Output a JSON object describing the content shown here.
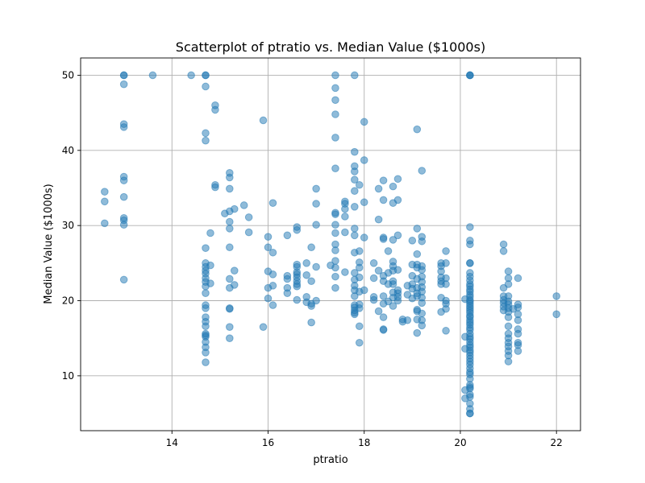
{
  "chart_data": {
    "type": "scatter",
    "title": "Scatterplot of ptratio vs. Median Value ($1000s)",
    "xlabel": "ptratio",
    "ylabel": "Median Value ($1000s)",
    "xlim": [
      12.1,
      22.5
    ],
    "ylim": [
      2.7,
      52.3
    ],
    "xticks": [
      14,
      16,
      18,
      20,
      22
    ],
    "yticks": [
      10,
      20,
      30,
      40,
      50
    ],
    "grid": true,
    "marker_color": "#1f77b4",
    "marker_alpha": 0.5,
    "points": [
      [
        12.6,
        34.5
      ],
      [
        12.6,
        33.2
      ],
      [
        12.6,
        30.3
      ],
      [
        13.0,
        50.0
      ],
      [
        13.0,
        50.0
      ],
      [
        13.0,
        48.8
      ],
      [
        13.0,
        43.5
      ],
      [
        13.0,
        43.1
      ],
      [
        13.0,
        36.5
      ],
      [
        13.0,
        36.0
      ],
      [
        13.0,
        33.8
      ],
      [
        13.0,
        31.0
      ],
      [
        13.0,
        30.7
      ],
      [
        13.0,
        30.1
      ],
      [
        13.0,
        22.8
      ],
      [
        13.6,
        50.0
      ],
      [
        14.4,
        50.0
      ],
      [
        14.7,
        50.0
      ],
      [
        14.7,
        50.0
      ],
      [
        14.7,
        48.5
      ],
      [
        14.7,
        42.3
      ],
      [
        14.7,
        41.3
      ],
      [
        14.7,
        27.0
      ],
      [
        14.7,
        25.0
      ],
      [
        14.7,
        24.5
      ],
      [
        14.7,
        24.0
      ],
      [
        14.7,
        23.6
      ],
      [
        14.7,
        23.0
      ],
      [
        14.7,
        22.5
      ],
      [
        14.7,
        21.9
      ],
      [
        14.7,
        21.0
      ],
      [
        14.7,
        19.4
      ],
      [
        14.7,
        19.0
      ],
      [
        14.7,
        17.8
      ],
      [
        14.7,
        17.2
      ],
      [
        14.7,
        16.6
      ],
      [
        14.7,
        15.6
      ],
      [
        14.7,
        15.4
      ],
      [
        14.7,
        15.2
      ],
      [
        14.7,
        14.5
      ],
      [
        14.7,
        13.8
      ],
      [
        14.7,
        13.1
      ],
      [
        14.7,
        11.8
      ],
      [
        14.8,
        29.0
      ],
      [
        14.8,
        24.7
      ],
      [
        14.8,
        22.3
      ],
      [
        14.9,
        46.0
      ],
      [
        14.9,
        45.4
      ],
      [
        14.9,
        35.4
      ],
      [
        14.9,
        35.1
      ],
      [
        15.1,
        31.6
      ],
      [
        15.2,
        37.0
      ],
      [
        15.2,
        36.4
      ],
      [
        15.2,
        34.9
      ],
      [
        15.2,
        31.9
      ],
      [
        15.2,
        30.5
      ],
      [
        15.2,
        29.6
      ],
      [
        15.2,
        27.1
      ],
      [
        15.2,
        22.9
      ],
      [
        15.2,
        21.7
      ],
      [
        15.2,
        19.0
      ],
      [
        15.2,
        18.9
      ],
      [
        15.2,
        16.5
      ],
      [
        15.2,
        15.0
      ],
      [
        15.3,
        32.2
      ],
      [
        15.3,
        24.0
      ],
      [
        15.3,
        22.1
      ],
      [
        15.5,
        32.7
      ],
      [
        15.6,
        31.1
      ],
      [
        15.6,
        29.1
      ],
      [
        15.9,
        44.0
      ],
      [
        15.9,
        16.5
      ],
      [
        16.0,
        28.5
      ],
      [
        16.0,
        27.1
      ],
      [
        16.0,
        23.9
      ],
      [
        16.0,
        21.7
      ],
      [
        16.0,
        20.3
      ],
      [
        16.1,
        33.0
      ],
      [
        16.1,
        26.4
      ],
      [
        16.1,
        23.5
      ],
      [
        16.1,
        22.0
      ],
      [
        16.1,
        19.4
      ],
      [
        16.4,
        28.7
      ],
      [
        16.4,
        23.3
      ],
      [
        16.4,
        22.9
      ],
      [
        16.4,
        21.7
      ],
      [
        16.4,
        21.0
      ],
      [
        16.6,
        29.8
      ],
      [
        16.6,
        29.4
      ],
      [
        16.6,
        24.8
      ],
      [
        16.6,
        24.5
      ],
      [
        16.6,
        23.8
      ],
      [
        16.6,
        23.5
      ],
      [
        16.6,
        23.1
      ],
      [
        16.6,
        22.6
      ],
      [
        16.6,
        22.2
      ],
      [
        16.6,
        21.9
      ],
      [
        16.6,
        20.1
      ],
      [
        16.8,
        25.0
      ],
      [
        16.8,
        23.4
      ],
      [
        16.8,
        20.5
      ],
      [
        16.8,
        19.8
      ],
      [
        16.9,
        27.1
      ],
      [
        16.9,
        22.6
      ],
      [
        16.9,
        19.6
      ],
      [
        16.9,
        19.3
      ],
      [
        16.9,
        17.1
      ],
      [
        17.0,
        34.9
      ],
      [
        17.0,
        32.9
      ],
      [
        17.0,
        30.1
      ],
      [
        17.0,
        24.5
      ],
      [
        17.0,
        20.0
      ],
      [
        17.3,
        24.7
      ],
      [
        17.4,
        50.0
      ],
      [
        17.4,
        48.3
      ],
      [
        17.4,
        46.7
      ],
      [
        17.4,
        44.8
      ],
      [
        17.4,
        41.7
      ],
      [
        17.4,
        37.6
      ],
      [
        17.4,
        31.7
      ],
      [
        17.4,
        31.5
      ],
      [
        17.4,
        30.1
      ],
      [
        17.4,
        29.0
      ],
      [
        17.4,
        27.5
      ],
      [
        17.4,
        26.7
      ],
      [
        17.4,
        25.3
      ],
      [
        17.4,
        24.4
      ],
      [
        17.4,
        23.2
      ],
      [
        17.4,
        21.7
      ],
      [
        17.6,
        33.2
      ],
      [
        17.6,
        32.9
      ],
      [
        17.6,
        32.2
      ],
      [
        17.6,
        31.2
      ],
      [
        17.6,
        29.1
      ],
      [
        17.6,
        23.8
      ],
      [
        17.8,
        50.0
      ],
      [
        17.8,
        39.8
      ],
      [
        17.8,
        37.9
      ],
      [
        17.8,
        37.2
      ],
      [
        17.8,
        36.1
      ],
      [
        17.8,
        34.6
      ],
      [
        17.8,
        32.5
      ],
      [
        17.8,
        29.6
      ],
      [
        17.8,
        28.7
      ],
      [
        17.8,
        26.4
      ],
      [
        17.8,
        23.7
      ],
      [
        17.8,
        22.8
      ],
      [
        17.8,
        22.0
      ],
      [
        17.8,
        21.4
      ],
      [
        17.8,
        20.6
      ],
      [
        17.8,
        19.4
      ],
      [
        17.8,
        19.1
      ],
      [
        17.8,
        18.7
      ],
      [
        17.8,
        18.4
      ],
      [
        17.8,
        18.2
      ],
      [
        17.9,
        35.4
      ],
      [
        17.9,
        26.6
      ],
      [
        17.9,
        25.1
      ],
      [
        17.9,
        24.4
      ],
      [
        17.9,
        23.1
      ],
      [
        17.9,
        21.2
      ],
      [
        17.9,
        19.5
      ],
      [
        17.9,
        19.0
      ],
      [
        17.9,
        16.6
      ],
      [
        17.9,
        14.4
      ],
      [
        18.0,
        43.8
      ],
      [
        18.0,
        38.7
      ],
      [
        18.0,
        33.1
      ],
      [
        18.0,
        28.4
      ],
      [
        18.0,
        21.4
      ],
      [
        18.2,
        25.0
      ],
      [
        18.2,
        23.0
      ],
      [
        18.2,
        20.5
      ],
      [
        18.2,
        20.1
      ],
      [
        18.3,
        34.9
      ],
      [
        18.3,
        30.8
      ],
      [
        18.3,
        24.0
      ],
      [
        18.3,
        18.6
      ],
      [
        18.4,
        36.0
      ],
      [
        18.4,
        33.4
      ],
      [
        18.4,
        28.4
      ],
      [
        18.4,
        28.2
      ],
      [
        18.4,
        23.3
      ],
      [
        18.4,
        22.6
      ],
      [
        18.4,
        20.6
      ],
      [
        18.4,
        19.6
      ],
      [
        18.4,
        17.8
      ],
      [
        18.4,
        16.2
      ],
      [
        18.4,
        16.1
      ],
      [
        18.5,
        26.6
      ],
      [
        18.5,
        23.7
      ],
      [
        18.5,
        22.2
      ],
      [
        18.5,
        19.9
      ],
      [
        18.6,
        35.2
      ],
      [
        18.6,
        33.0
      ],
      [
        18.6,
        28.1
      ],
      [
        18.6,
        25.2
      ],
      [
        18.6,
        24.6
      ],
      [
        18.6,
        24.0
      ],
      [
        18.6,
        22.6
      ],
      [
        18.6,
        22.2
      ],
      [
        18.6,
        21.1
      ],
      [
        18.6,
        20.4
      ],
      [
        18.6,
        19.3
      ],
      [
        18.7,
        36.2
      ],
      [
        18.7,
        33.4
      ],
      [
        18.7,
        28.7
      ],
      [
        18.7,
        24.1
      ],
      [
        18.7,
        21.4
      ],
      [
        18.7,
        21.0
      ],
      [
        18.7,
        20.5
      ],
      [
        18.7,
        20.0
      ],
      [
        18.8,
        17.5
      ],
      [
        18.8,
        17.2
      ],
      [
        18.9,
        22.0
      ],
      [
        18.9,
        20.8
      ],
      [
        18.9,
        17.4
      ],
      [
        19.0,
        28.0
      ],
      [
        19.0,
        24.8
      ],
      [
        19.0,
        23.3
      ],
      [
        19.0,
        22.2
      ],
      [
        19.0,
        21.6
      ],
      [
        19.0,
        20.3
      ],
      [
        19.1,
        42.8
      ],
      [
        19.1,
        29.6
      ],
      [
        19.1,
        26.2
      ],
      [
        19.1,
        24.8
      ],
      [
        19.1,
        24.4
      ],
      [
        19.1,
        22.9
      ],
      [
        19.1,
        21.7
      ],
      [
        19.1,
        21.0
      ],
      [
        19.1,
        20.6
      ],
      [
        19.1,
        18.8
      ],
      [
        19.1,
        18.6
      ],
      [
        19.1,
        17.5
      ],
      [
        19.1,
        15.7
      ],
      [
        19.2,
        37.3
      ],
      [
        19.2,
        28.5
      ],
      [
        19.2,
        27.9
      ],
      [
        19.2,
        24.6
      ],
      [
        19.2,
        24.1
      ],
      [
        19.2,
        23.2
      ],
      [
        19.2,
        22.5
      ],
      [
        19.2,
        21.8
      ],
      [
        19.2,
        21.2
      ],
      [
        19.2,
        20.4
      ],
      [
        19.2,
        19.7
      ],
      [
        19.2,
        18.3
      ],
      [
        19.2,
        17.4
      ],
      [
        19.2,
        16.7
      ],
      [
        19.6,
        25.0
      ],
      [
        19.6,
        24.6
      ],
      [
        19.6,
        23.9
      ],
      [
        19.6,
        23.1
      ],
      [
        19.6,
        22.6
      ],
      [
        19.6,
        22.2
      ],
      [
        19.6,
        20.4
      ],
      [
        19.6,
        18.5
      ],
      [
        19.7,
        26.6
      ],
      [
        19.7,
        25.0
      ],
      [
        19.7,
        23.0
      ],
      [
        19.7,
        22.2
      ],
      [
        19.7,
        20.0
      ],
      [
        19.7,
        19.6
      ],
      [
        19.7,
        18.9
      ],
      [
        19.7,
        16.0
      ],
      [
        20.1,
        20.2
      ],
      [
        20.1,
        15.2
      ],
      [
        20.1,
        13.6
      ],
      [
        20.1,
        8.1
      ],
      [
        20.1,
        7.0
      ],
      [
        20.2,
        50.0
      ],
      [
        20.2,
        50.0
      ],
      [
        20.2,
        50.0
      ],
      [
        20.2,
        29.8
      ],
      [
        20.2,
        28.0
      ],
      [
        20.2,
        27.5
      ],
      [
        20.2,
        25.0
      ],
      [
        20.2,
        25.0
      ],
      [
        20.2,
        23.7
      ],
      [
        20.2,
        23.2
      ],
      [
        20.2,
        22.7
      ],
      [
        20.2,
        22.2
      ],
      [
        20.2,
        21.9
      ],
      [
        20.2,
        21.5
      ],
      [
        20.2,
        21.2
      ],
      [
        20.2,
        20.8
      ],
      [
        20.2,
        20.5
      ],
      [
        20.2,
        20.1
      ],
      [
        20.2,
        19.9
      ],
      [
        20.2,
        19.6
      ],
      [
        20.2,
        19.3
      ],
      [
        20.2,
        19.0
      ],
      [
        20.2,
        18.7
      ],
      [
        20.2,
        18.4
      ],
      [
        20.2,
        18.0
      ],
      [
        20.2,
        17.8
      ],
      [
        20.2,
        17.4
      ],
      [
        20.2,
        17.1
      ],
      [
        20.2,
        16.8
      ],
      [
        20.2,
        16.4
      ],
      [
        20.2,
        16.1
      ],
      [
        20.2,
        15.6
      ],
      [
        20.2,
        15.2
      ],
      [
        20.2,
        14.9
      ],
      [
        20.2,
        14.5
      ],
      [
        20.2,
        14.1
      ],
      [
        20.2,
        13.8
      ],
      [
        20.2,
        13.4
      ],
      [
        20.2,
        13.1
      ],
      [
        20.2,
        12.7
      ],
      [
        20.2,
        12.3
      ],
      [
        20.2,
        11.9
      ],
      [
        20.2,
        11.5
      ],
      [
        20.2,
        11.0
      ],
      [
        20.2,
        10.5
      ],
      [
        20.2,
        10.2
      ],
      [
        20.2,
        9.6
      ],
      [
        20.2,
        8.8
      ],
      [
        20.2,
        8.5
      ],
      [
        20.2,
        8.3
      ],
      [
        20.2,
        7.5
      ],
      [
        20.2,
        7.2
      ],
      [
        20.2,
        6.3
      ],
      [
        20.2,
        5.6
      ],
      [
        20.2,
        5.0
      ],
      [
        20.2,
        5.0
      ],
      [
        20.9,
        27.5
      ],
      [
        20.9,
        26.6
      ],
      [
        20.9,
        21.7
      ],
      [
        20.9,
        20.6
      ],
      [
        20.9,
        20.1
      ],
      [
        20.9,
        19.7
      ],
      [
        20.9,
        19.2
      ],
      [
        20.9,
        18.7
      ],
      [
        21.0,
        23.9
      ],
      [
        21.0,
        23.0
      ],
      [
        21.0,
        22.2
      ],
      [
        21.0,
        20.6
      ],
      [
        21.0,
        19.9
      ],
      [
        21.0,
        19.5
      ],
      [
        21.0,
        19.0
      ],
      [
        21.0,
        18.5
      ],
      [
        21.0,
        17.8
      ],
      [
        21.0,
        16.6
      ],
      [
        21.0,
        15.6
      ],
      [
        21.0,
        15.0
      ],
      [
        21.0,
        14.4
      ],
      [
        21.0,
        13.9
      ],
      [
        21.0,
        13.3
      ],
      [
        21.0,
        12.7
      ],
      [
        21.0,
        11.9
      ],
      [
        21.1,
        18.9
      ],
      [
        21.2,
        23.0
      ],
      [
        21.2,
        19.5
      ],
      [
        21.2,
        19.1
      ],
      [
        21.2,
        18.2
      ],
      [
        21.2,
        17.4
      ],
      [
        21.2,
        16.2
      ],
      [
        21.2,
        15.6
      ],
      [
        21.2,
        14.4
      ],
      [
        21.2,
        14.1
      ],
      [
        21.2,
        13.3
      ],
      [
        22.0,
        20.6
      ],
      [
        22.0,
        18.2
      ]
    ]
  }
}
